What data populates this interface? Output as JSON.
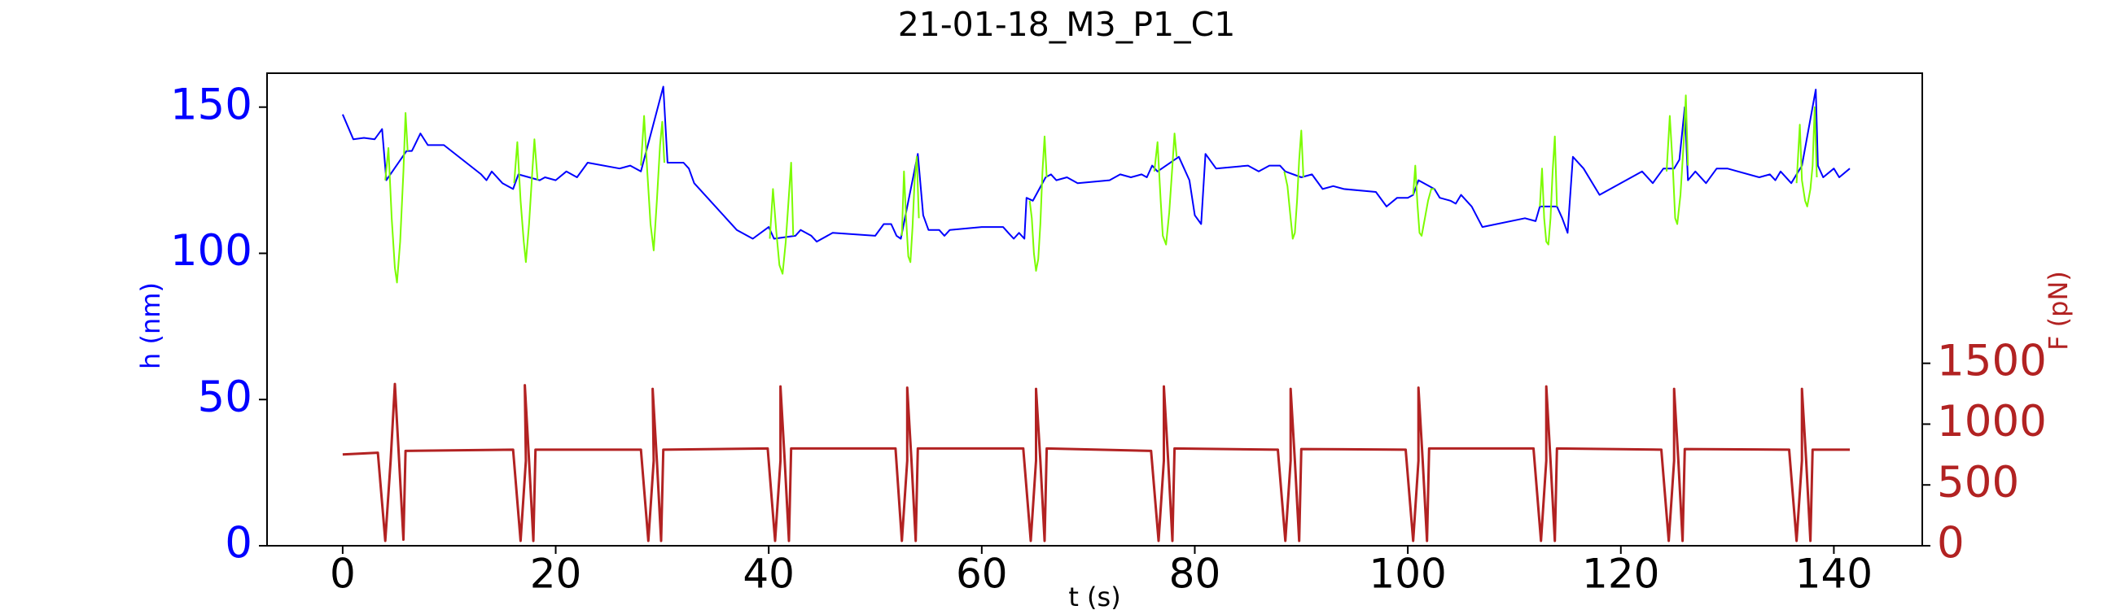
{
  "chart_data": {
    "type": "line",
    "title": "21-01-18_M3_P1_C1",
    "xlabel": "t (s)",
    "ylabel": "h (nm)",
    "y2label": "F (pN)",
    "ycolor": "#0000ff",
    "y2color": "#b22222",
    "xlim": [
      -7.1,
      148.3
    ],
    "xticks": [
      0,
      20,
      40,
      60,
      80,
      100,
      120,
      140
    ],
    "ylim": [
      0,
      161.6
    ],
    "yticks": [
      0,
      50,
      100,
      150
    ],
    "y2lim": [
      0,
      3885
    ],
    "y2ticks": [
      0,
      500,
      1000,
      1500
    ],
    "series": [
      {
        "color": "#0000ff",
        "axis": "y",
        "x": [
          0,
          1,
          2,
          3,
          3.7,
          4.1,
          6,
          6.5,
          7.3,
          8,
          9.5,
          13,
          13.5,
          14,
          15,
          16,
          16.5,
          18.5,
          19,
          20,
          21,
          22,
          23,
          26,
          27,
          28,
          30.1,
          30.5,
          32,
          32.5,
          33,
          37,
          38.5,
          40,
          40.5,
          42.5,
          43,
          44,
          44.5,
          46,
          50,
          50.8,
          51.5,
          52,
          52.4,
          54,
          54.5,
          55,
          56,
          56.5,
          57,
          60,
          62,
          62.5,
          63,
          63.5,
          64,
          64.2,
          64.8,
          66,
          66.5,
          67,
          68,
          69,
          72,
          73,
          74,
          75,
          75.5,
          76,
          76.5,
          78.5,
          79,
          79.5,
          80,
          80.6,
          81,
          82,
          85,
          86,
          87,
          88,
          88.5,
          90,
          91,
          92,
          93,
          94,
          97,
          98,
          99,
          100,
          100.5,
          101,
          102.5,
          103,
          104,
          104.5,
          105,
          106,
          107,
          111,
          112,
          112.4,
          114,
          114.5,
          115,
          115.5,
          116.5,
          118,
          122,
          123,
          124,
          125,
          125.5,
          126,
          126.3,
          127,
          128,
          129,
          130,
          133,
          134,
          134.5,
          135,
          136,
          137,
          138.3,
          138.5,
          139,
          140,
          140.5,
          141.5
        ],
        "values": [
          147.5,
          139,
          139.5,
          139,
          142.5,
          125,
          135,
          135,
          141,
          137,
          137,
          127,
          125,
          128,
          124,
          122,
          127,
          125,
          126,
          125,
          128,
          126,
          131,
          129,
          130,
          128,
          157,
          131,
          131,
          129,
          124,
          108,
          105,
          109,
          105,
          106,
          108,
          106,
          104,
          107,
          106,
          110,
          110,
          106,
          105,
          134,
          113,
          108,
          108,
          106,
          108,
          109,
          109,
          107,
          105,
          107,
          105,
          119,
          118,
          126,
          127,
          125,
          126,
          124,
          125,
          127,
          126,
          127,
          126,
          130,
          128,
          133,
          129,
          125,
          113,
          110,
          134,
          129,
          130,
          128,
          130,
          130,
          128,
          126,
          127,
          122,
          123,
          122,
          121,
          116,
          119,
          119,
          120,
          125,
          122,
          119,
          118,
          117,
          120,
          116,
          109,
          112,
          111,
          116,
          116,
          112,
          107,
          133,
          129,
          120,
          128,
          124,
          129,
          129,
          132,
          150,
          125,
          128,
          124,
          129,
          129,
          126,
          127,
          125,
          128,
          124,
          130,
          156,
          130,
          126,
          129,
          126,
          129
        ]
      },
      {
        "color": "#7cfc00",
        "axis": "y",
        "x": [
          4.0,
          4.3,
          4.6,
          4.9,
          5.1,
          5.4,
          5.7,
          5.9,
          6.1,
          11,
          16.1,
          16.4,
          16.7,
          17.0,
          17.2,
          17.5,
          17.8,
          18.0,
          18.3,
          23,
          28.0,
          28.3,
          28.6,
          28.9,
          29.2,
          29.5,
          29.8,
          30.0,
          30.2,
          35,
          40.1,
          40.4,
          40.7,
          41.0,
          41.3,
          41.6,
          41.9,
          42.1,
          42.3,
          47,
          52.5,
          52.7,
          52.9,
          53.1,
          53.3,
          53.5,
          53.7,
          53.9,
          54.1,
          59,
          64.5,
          64.7,
          64.9,
          65.1,
          65.3,
          65.5,
          65.7,
          65.9,
          66.1,
          71,
          76.2,
          76.5,
          76.8,
          77.0,
          77.3,
          77.6,
          77.9,
          78.1,
          78.3,
          83,
          88.4,
          88.7,
          89.0,
          89.2,
          89.4,
          89.6,
          89.8,
          90.0,
          90.2,
          95,
          100.5,
          100.7,
          100.9,
          101.1,
          101.3,
          101.6,
          101.9,
          102.2,
          102.5,
          107,
          112.4,
          112.6,
          112.8,
          113.0,
          113.2,
          113.4,
          113.6,
          113.8,
          114.0,
          119,
          124.3,
          124.6,
          124.9,
          125.1,
          125.3,
          125.6,
          125.9,
          126.1,
          126.3,
          131,
          136.5,
          136.8,
          137.0,
          137.3,
          137.5,
          137.8,
          138.0,
          138.2,
          138.4
        ],
        "values": [
          125,
          136,
          112,
          95,
          90,
          104,
          128,
          148,
          135,
          null,
          124,
          138,
          118,
          104,
          97,
          110,
          128,
          139,
          125,
          null,
          130,
          147,
          128,
          110,
          101,
          118,
          137,
          145,
          131,
          null,
          105,
          122,
          108,
          96,
          93,
          104,
          120,
          131,
          106,
          null,
          106,
          128,
          112,
          99,
          97,
          109,
          125,
          133,
          112,
          null,
          118,
          112,
          100,
          94,
          98,
          110,
          128,
          140,
          126,
          null,
          128,
          138,
          118,
          106,
          103,
          114,
          130,
          141,
          133,
          null,
          128,
          123,
          112,
          105,
          107,
          118,
          132,
          142,
          126,
          null,
          120,
          130,
          117,
          107,
          106,
          112,
          118,
          122,
          122,
          null,
          116,
          129,
          112,
          104,
          103,
          112,
          128,
          140,
          116,
          null,
          128,
          147,
          128,
          112,
          110,
          120,
          138,
          154,
          130,
          null,
          124,
          144,
          125,
          118,
          116,
          122,
          130,
          150,
          126
        ]
      },
      {
        "color": "#b22222",
        "axis": "y2",
        "x": [
          0,
          3.3,
          4.0,
          4.5,
          4.9,
          5.3,
          5.7,
          5.9,
          16.0,
          16.7,
          17.2,
          17.1,
          17.5,
          17.9,
          18.1,
          28.0,
          28.7,
          29.2,
          29.1,
          29.5,
          29.9,
          30.1,
          39.9,
          40.6,
          41.1,
          41.1,
          41.5,
          41.9,
          42.1,
          51.9,
          52.5,
          53.0,
          53.0,
          53.4,
          53.8,
          54.0,
          63.9,
          64.6,
          65.1,
          65.1,
          65.5,
          65.9,
          66.1,
          75.9,
          76.6,
          77.1,
          77.1,
          77.5,
          77.9,
          78.1,
          87.8,
          88.5,
          89.0,
          89.0,
          89.4,
          89.8,
          90.0,
          99.8,
          100.5,
          101.0,
          101.0,
          101.4,
          101.8,
          102.0,
          111.8,
          112.5,
          113.0,
          113.0,
          113.4,
          113.8,
          114.0,
          123.8,
          124.5,
          125.0,
          125.0,
          125.4,
          125.8,
          126.0,
          135.8,
          136.5,
          137.0,
          137.0,
          137.4,
          137.8,
          138.0,
          141.5
        ],
        "values": [
          750,
          765,
          40,
          700,
          1330,
          700,
          50,
          780,
          790,
          40,
          700,
          1320,
          700,
          40,
          790,
          790,
          40,
          700,
          1290,
          700,
          40,
          790,
          800,
          40,
          700,
          1310,
          700,
          40,
          800,
          800,
          40,
          700,
          1300,
          700,
          40,
          800,
          800,
          40,
          700,
          1290,
          700,
          40,
          800,
          780,
          40,
          700,
          1310,
          700,
          40,
          800,
          790,
          40,
          700,
          1290,
          700,
          40,
          795,
          790,
          40,
          700,
          1300,
          700,
          40,
          800,
          800,
          40,
          700,
          1310,
          700,
          40,
          800,
          790,
          40,
          700,
          1290,
          700,
          40,
          795,
          790,
          40,
          700,
          1290,
          700,
          40,
          790,
          790
        ]
      }
    ]
  }
}
